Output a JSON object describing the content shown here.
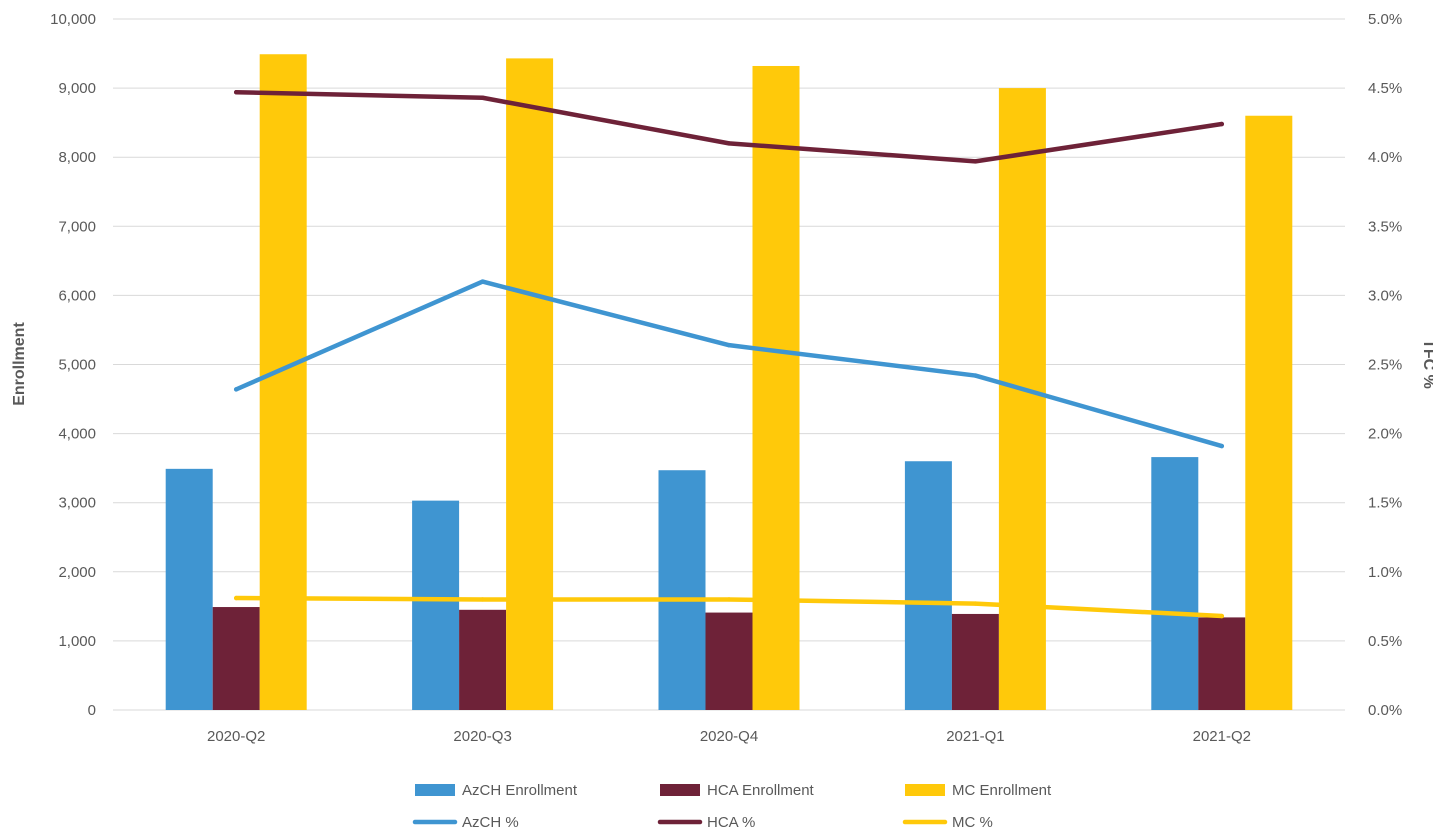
{
  "chart_data": {
    "type": "bar",
    "categories": [
      "2020-Q2",
      "2020-Q3",
      "2020-Q4",
      "2021-Q1",
      "2021-Q2"
    ],
    "series": [
      {
        "name": "AzCH Enrollment",
        "type": "bar",
        "axis": "left",
        "color": "#3f95d1",
        "values": [
          3490,
          3030,
          3470,
          3600,
          3660
        ]
      },
      {
        "name": "HCA Enrollment",
        "type": "bar",
        "axis": "left",
        "color": "#6e2238",
        "values": [
          1490,
          1450,
          1410,
          1390,
          1340
        ]
      },
      {
        "name": "MC Enrollment",
        "type": "bar",
        "axis": "left",
        "color": "#ffc90a",
        "values": [
          9490,
          9430,
          9320,
          9000,
          8600
        ]
      },
      {
        "name": "AzCH %",
        "type": "line",
        "axis": "right",
        "color": "#3f95d1",
        "values": [
          2.32,
          3.1,
          2.64,
          2.42,
          1.91
        ]
      },
      {
        "name": "HCA %",
        "type": "line",
        "axis": "right",
        "color": "#6e2238",
        "values": [
          4.47,
          4.43,
          4.1,
          3.97,
          4.24
        ]
      },
      {
        "name": "MC %",
        "type": "line",
        "axis": "right",
        "color": "#ffc90a",
        "values": [
          0.81,
          0.8,
          0.8,
          0.77,
          0.68
        ]
      }
    ],
    "ylabel": "Enrollment",
    "y2label": "TFC %",
    "ylim": [
      0,
      10000
    ],
    "y2lim": [
      0,
      5.0
    ],
    "yticks": [
      "0",
      "1,000",
      "2,000",
      "3,000",
      "4,000",
      "5,000",
      "6,000",
      "7,000",
      "8,000",
      "9,000",
      "10,000"
    ],
    "y2ticks": [
      "0.0%",
      "0.5%",
      "1.0%",
      "1.5%",
      "2.0%",
      "2.5%",
      "3.0%",
      "3.5%",
      "4.0%",
      "4.5%",
      "5.0%"
    ],
    "grid": true,
    "legend_position": "bottom"
  }
}
